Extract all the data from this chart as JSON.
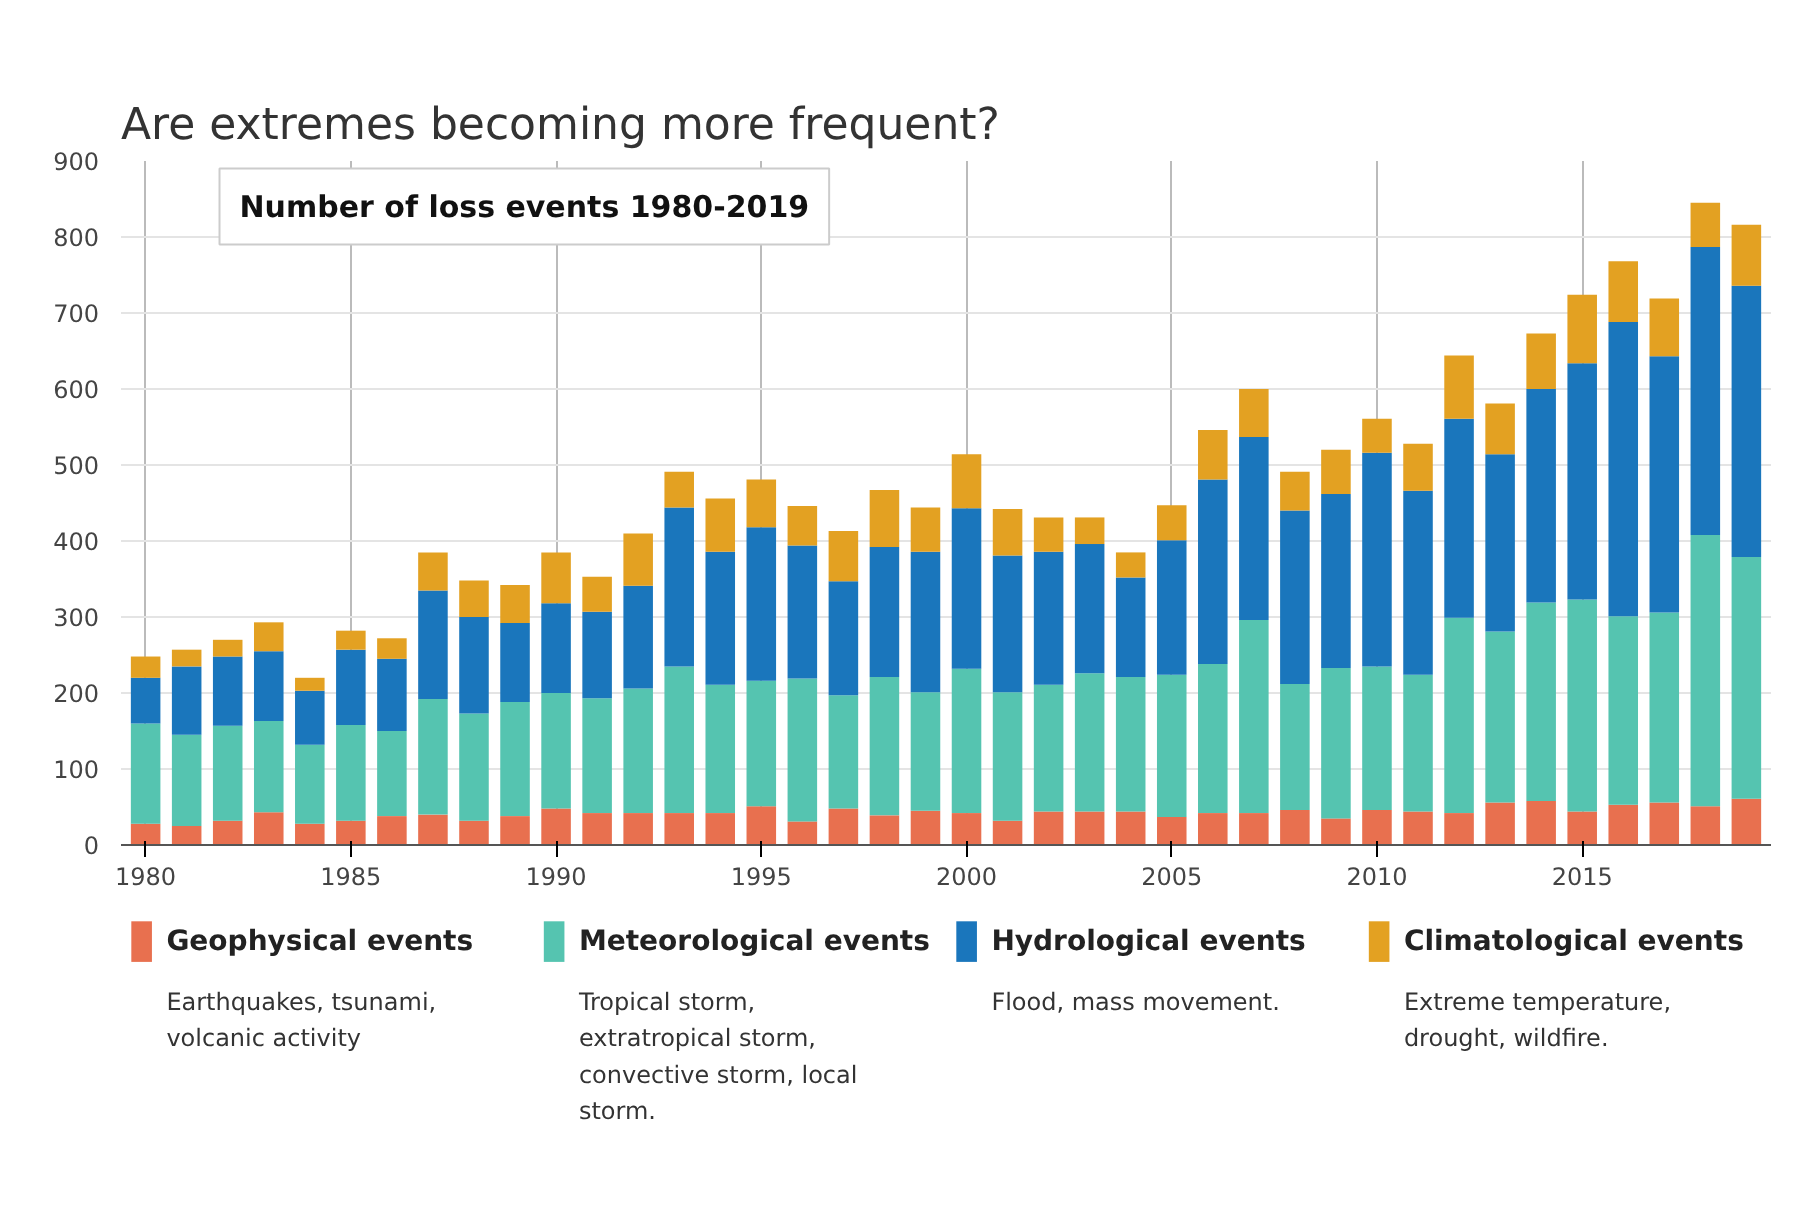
{
  "chart_data": {
    "type": "bar",
    "stacked": true,
    "title": "Are extremes becoming more frequent?",
    "subtitle": "Number of loss events 1980-2019",
    "x": [
      1980,
      1981,
      1982,
      1983,
      1984,
      1985,
      1986,
      1987,
      1988,
      1989,
      1990,
      1991,
      1992,
      1993,
      1994,
      1995,
      1996,
      1997,
      1998,
      1999,
      2000,
      2001,
      2002,
      2003,
      2004,
      2005,
      2006,
      2007,
      2008,
      2009,
      2010,
      2011,
      2012,
      2013,
      2014,
      2015,
      2016,
      2017,
      2018,
      2019
    ],
    "xlim": [
      1979.4,
      2019.6
    ],
    "xticks": [
      1980,
      1985,
      1990,
      1995,
      2000,
      2005,
      2010,
      2015
    ],
    "ylim": [
      0,
      900
    ],
    "yticks": [
      0,
      100,
      200,
      300,
      400,
      500,
      600,
      700,
      800,
      900
    ],
    "grid": true,
    "legend": "bottom",
    "series": [
      {
        "name": "Geophysical events",
        "color": "#e8704f",
        "values": [
          28,
          25,
          32,
          43,
          28,
          32,
          38,
          40,
          32,
          38,
          48,
          42,
          42,
          42,
          42,
          51,
          31,
          48,
          39,
          45,
          42,
          32,
          44,
          44,
          44,
          37,
          42,
          42,
          46,
          35,
          46,
          44,
          42,
          56,
          58,
          44,
          53,
          56,
          51,
          61
        ]
      },
      {
        "name": "Meteorological events",
        "color": "#55c4b0",
        "values": [
          132,
          120,
          125,
          120,
          104,
          126,
          112,
          152,
          141,
          150,
          152,
          151,
          164,
          193,
          169,
          165,
          188,
          149,
          182,
          156,
          190,
          169,
          167,
          182,
          177,
          187,
          196,
          254,
          166,
          198,
          189,
          180,
          257,
          225,
          261,
          279,
          248,
          250,
          357,
          318
        ]
      },
      {
        "name": "Hydrological events",
        "color": "#1a76bc",
        "values": [
          60,
          90,
          91,
          92,
          71,
          99,
          95,
          143,
          127,
          104,
          118,
          114,
          135,
          209,
          175,
          202,
          175,
          150,
          171,
          185,
          211,
          180,
          175,
          170,
          131,
          177,
          243,
          241,
          228,
          229,
          281,
          242,
          262,
          233,
          281,
          311,
          387,
          337,
          379,
          357
        ]
      },
      {
        "name": "Climatological events",
        "color": "#e3a122",
        "values": [
          28,
          22,
          22,
          38,
          17,
          25,
          27,
          50,
          48,
          50,
          67,
          46,
          69,
          47,
          70,
          63,
          52,
          66,
          75,
          58,
          71,
          61,
          45,
          35,
          33,
          46,
          65,
          63,
          51,
          58,
          45,
          62,
          83,
          67,
          73,
          90,
          80,
          76,
          58,
          80
        ]
      }
    ],
    "annotations": [
      "Earthquakes, tsunami, volcanic activity",
      "Tropical storm, extratropical storm, convective storm, local storm.",
      "Flood, mass movement.",
      "Extreme temperature, drought, wildfire."
    ]
  }
}
